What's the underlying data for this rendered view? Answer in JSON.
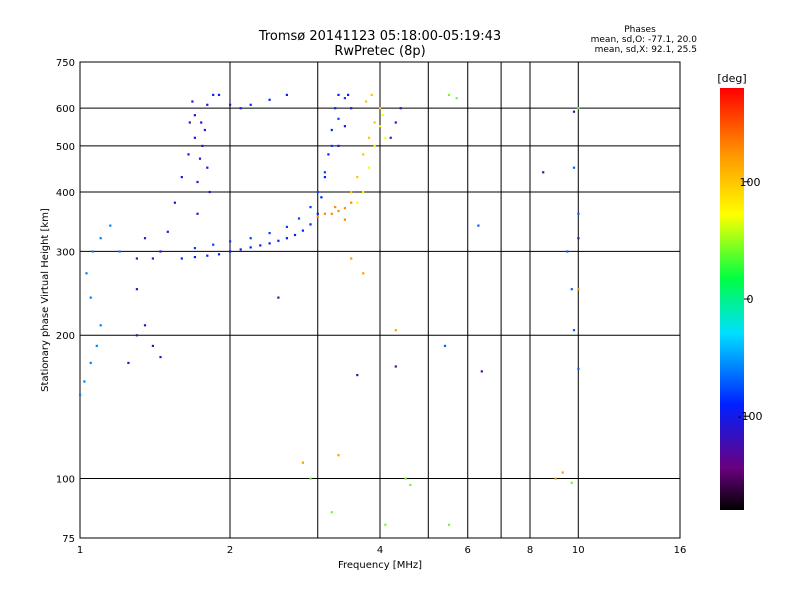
{
  "chart_data": {
    "type": "scatter",
    "title": "Tromsø 20141123 05:18:00-05:19:43",
    "subtitle": "RwPretec (8p)",
    "stats": {
      "heading": "Phases",
      "line1": "mean, sd,O: -77.1, 20.0",
      "line2": "mean, sd,X:  92.1, 25.5"
    },
    "xlabel": "Frequency [MHz]",
    "ylabel": "Stationary phase Virtual Height [km]",
    "x_scale": "log",
    "y_scale": "log",
    "xlim": [
      1,
      16
    ],
    "ylim": [
      75,
      750
    ],
    "x_ticks": [
      1,
      2,
      4,
      8,
      16
    ],
    "x_minor_gridlines": [
      3,
      5,
      6,
      7,
      10
    ],
    "x_tick_labels": [
      "1",
      "2",
      "4",
      "8",
      "16"
    ],
    "x_label_10": "10",
    "x_label_6": "6",
    "y_ticks": [
      75,
      100,
      200,
      300,
      400,
      500,
      600,
      750
    ],
    "y_tick_labels": [
      "75",
      "100",
      "200",
      "300",
      "400",
      "500",
      "600",
      "750"
    ],
    "grid": true,
    "colorbar": {
      "label": "[deg]",
      "range": [
        -180,
        180
      ],
      "ticks": [
        100,
        0,
        -100
      ],
      "tick_labels": [
        "100",
        "0",
        "-100"
      ],
      "colors": [
        "#000000",
        "#6a0080",
        "#0020ff",
        "#00e0ff",
        "#00ff40",
        "#ffff00",
        "#ff9000",
        "#ff0000"
      ]
    },
    "series": [
      {
        "phase": -90,
        "points": [
          [
            1.6,
            290
          ],
          [
            1.7,
            292
          ],
          [
            1.8,
            294
          ],
          [
            1.9,
            296
          ],
          [
            2.0,
            300
          ],
          [
            2.1,
            303
          ],
          [
            2.2,
            306
          ],
          [
            2.3,
            309
          ],
          [
            2.4,
            312
          ],
          [
            2.5,
            316
          ],
          [
            2.6,
            320
          ],
          [
            2.7,
            325
          ],
          [
            2.8,
            332
          ],
          [
            2.9,
            342
          ],
          [
            3.0,
            360
          ],
          [
            3.05,
            390
          ],
          [
            3.1,
            430
          ],
          [
            3.15,
            480
          ],
          [
            3.2,
            540
          ],
          [
            3.25,
            600
          ],
          [
            3.3,
            640
          ]
        ]
      },
      {
        "phase": -80,
        "points": [
          [
            1.7,
            305
          ],
          [
            1.85,
            310
          ],
          [
            2.0,
            315
          ],
          [
            2.2,
            320
          ],
          [
            2.4,
            328
          ],
          [
            2.6,
            338
          ],
          [
            2.75,
            352
          ],
          [
            2.9,
            372
          ],
          [
            3.0,
            400
          ],
          [
            3.1,
            440
          ],
          [
            3.2,
            500
          ],
          [
            3.3,
            570
          ],
          [
            3.4,
            630
          ]
        ]
      },
      {
        "phase": -100,
        "points": [
          [
            1.4,
            290
          ],
          [
            1.45,
            300
          ],
          [
            1.5,
            330
          ],
          [
            1.55,
            380
          ],
          [
            1.6,
            430
          ],
          [
            1.65,
            480
          ],
          [
            1.7,
            520
          ],
          [
            1.75,
            560
          ],
          [
            1.8,
            610
          ],
          [
            1.85,
            640
          ]
        ]
      },
      {
        "phase": -110,
        "points": [
          [
            1.72,
            360
          ],
          [
            1.72,
            420
          ],
          [
            1.74,
            470
          ],
          [
            1.76,
            500
          ],
          [
            1.78,
            540
          ],
          [
            1.7,
            580
          ],
          [
            1.68,
            620
          ],
          [
            1.66,
            560
          ],
          [
            1.8,
            450
          ],
          [
            1.82,
            400
          ]
        ]
      },
      {
        "phase": -95,
        "points": [
          [
            1.9,
            640
          ],
          [
            2.0,
            610
          ],
          [
            2.1,
            600
          ],
          [
            2.2,
            610
          ],
          [
            2.4,
            625
          ],
          [
            2.6,
            640
          ]
        ]
      },
      {
        "phase": -60,
        "points": [
          [
            1.0,
            150
          ],
          [
            1.02,
            160
          ],
          [
            1.05,
            175
          ],
          [
            1.08,
            190
          ],
          [
            1.1,
            210
          ],
          [
            1.05,
            240
          ],
          [
            1.03,
            270
          ],
          [
            1.06,
            300
          ],
          [
            1.1,
            320
          ],
          [
            1.15,
            340
          ],
          [
            1.2,
            300
          ]
        ]
      },
      {
        "phase": -120,
        "points": [
          [
            1.25,
            175
          ],
          [
            1.3,
            200
          ],
          [
            1.35,
            210
          ],
          [
            1.4,
            190
          ],
          [
            1.45,
            180
          ],
          [
            1.3,
            250
          ],
          [
            1.3,
            290
          ],
          [
            1.35,
            320
          ]
        ]
      },
      {
        "phase": 130,
        "points": [
          [
            3.0,
            355
          ],
          [
            3.1,
            360
          ],
          [
            3.2,
            360
          ],
          [
            3.3,
            365
          ],
          [
            3.4,
            370
          ],
          [
            3.5,
            380
          ],
          [
            3.4,
            350
          ],
          [
            3.25,
            372
          ]
        ]
      },
      {
        "phase": 100,
        "points": [
          [
            3.5,
            400
          ],
          [
            3.6,
            430
          ],
          [
            3.7,
            480
          ],
          [
            3.8,
            520
          ],
          [
            3.9,
            560
          ],
          [
            4.0,
            600
          ],
          [
            3.75,
            620
          ],
          [
            3.85,
            640
          ]
        ]
      },
      {
        "phase": 70,
        "points": [
          [
            3.6,
            380
          ],
          [
            3.7,
            400
          ],
          [
            3.8,
            450
          ],
          [
            3.9,
            500
          ],
          [
            4.0,
            550
          ],
          [
            4.1,
            520
          ],
          [
            4.05,
            580
          ]
        ]
      },
      {
        "phase": -105,
        "points": [
          [
            3.3,
            500
          ],
          [
            3.4,
            550
          ],
          [
            3.5,
            600
          ],
          [
            3.45,
            640
          ],
          [
            4.2,
            520
          ],
          [
            4.3,
            560
          ],
          [
            4.4,
            600
          ]
        ]
      },
      {
        "phase": 40,
        "points": [
          [
            5.5,
            640
          ],
          [
            5.7,
            630
          ],
          [
            4.5,
            100
          ],
          [
            4.6,
            97
          ],
          [
            5.5,
            80
          ],
          [
            2.9,
            100
          ],
          [
            3.2,
            85
          ],
          [
            4.1,
            80
          ],
          [
            9.7,
            98
          ],
          [
            10.0,
            600
          ]
        ]
      },
      {
        "phase": 120,
        "points": [
          [
            2.8,
            108
          ],
          [
            3.3,
            112
          ],
          [
            3.7,
            270
          ],
          [
            10.0,
            250
          ],
          [
            9.0,
            100
          ],
          [
            9.3,
            103
          ],
          [
            3.5,
            290
          ],
          [
            4.3,
            205
          ]
        ]
      },
      {
        "phase": -70,
        "points": [
          [
            9.5,
            300
          ],
          [
            9.7,
            250
          ],
          [
            9.8,
            205
          ],
          [
            10.0,
            170
          ],
          [
            9.8,
            450
          ],
          [
            10.0,
            360
          ],
          [
            5.4,
            190
          ],
          [
            6.3,
            340
          ]
        ]
      },
      {
        "phase": -130,
        "points": [
          [
            8.5,
            440
          ],
          [
            10.0,
            320
          ],
          [
            9.8,
            590
          ],
          [
            3.6,
            165
          ],
          [
            4.3,
            172
          ],
          [
            6.4,
            168
          ],
          [
            2.5,
            240
          ]
        ]
      }
    ]
  }
}
